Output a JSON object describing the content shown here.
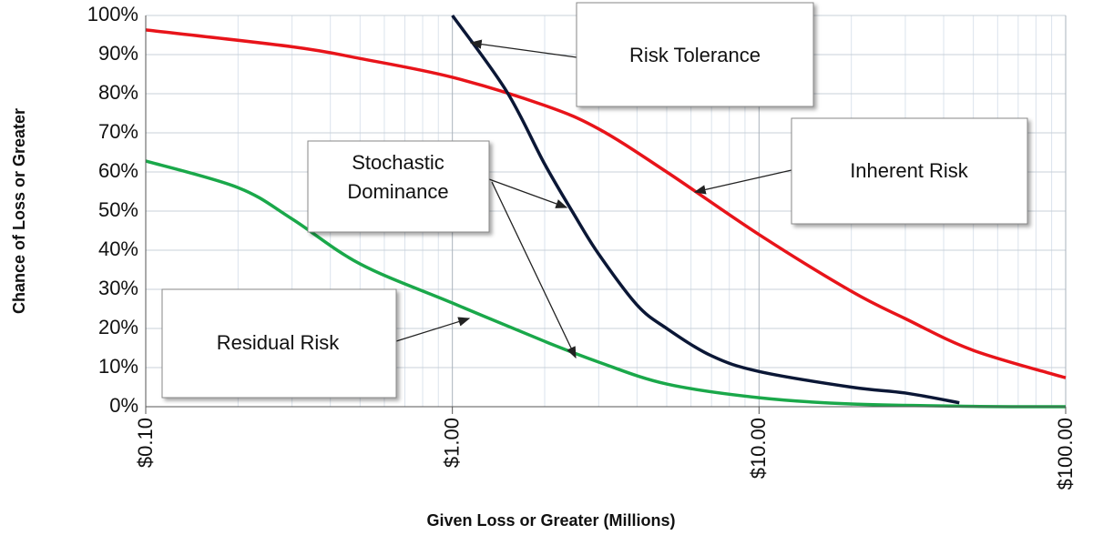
{
  "chart_data": {
    "type": "line",
    "x_label": "Given Loss or Greater (Millions)",
    "y_label": "Chance of Loss or Greater",
    "x_scale": "log",
    "xlim": [
      0.1,
      100
    ],
    "xticks": [
      {
        "value": 0.1,
        "label": "$0.10"
      },
      {
        "value": 1,
        "label": "$1.00"
      },
      {
        "value": 10,
        "label": "$10.00"
      },
      {
        "value": 100,
        "label": "$100.00"
      }
    ],
    "xminorticks": [
      0.2,
      0.3,
      0.4,
      0.5,
      0.6,
      0.7,
      0.8,
      0.9,
      2,
      3,
      4,
      5,
      6,
      7,
      8,
      9,
      20,
      30,
      40,
      50,
      60,
      70,
      80,
      90
    ],
    "ylim": [
      0,
      100
    ],
    "yticks": [
      {
        "value": 0,
        "label": "0%"
      },
      {
        "value": 10,
        "label": "10%"
      },
      {
        "value": 20,
        "label": "20%"
      },
      {
        "value": 30,
        "label": "30%"
      },
      {
        "value": 40,
        "label": "40%"
      },
      {
        "value": 50,
        "label": "50%"
      },
      {
        "value": 60,
        "label": "60%"
      },
      {
        "value": 70,
        "label": "70%"
      },
      {
        "value": 80,
        "label": "80%"
      },
      {
        "value": 90,
        "label": "90%"
      },
      {
        "value": 100,
        "label": "100%"
      }
    ],
    "grid": true,
    "series": [
      {
        "name": "Inherent Risk",
        "color": "#e8141a",
        "x": [
          0.1,
          0.3,
          0.5,
          1,
          2,
          3,
          5,
          10,
          20,
          30,
          50,
          100
        ],
        "values": [
          96.3,
          92,
          89,
          84.2,
          77,
          71,
          60,
          44,
          29.5,
          22.5,
          14.4,
          7.4
        ]
      },
      {
        "name": "Residual Risk",
        "color": "#1aa84a",
        "x": [
          0.1,
          0.2,
          0.3,
          0.5,
          1,
          2,
          3,
          5,
          10,
          20,
          50,
          100
        ],
        "values": [
          62.8,
          56,
          48,
          36.5,
          26.5,
          16.7,
          11.4,
          5.8,
          2.3,
          0.7,
          0.1,
          0
        ]
      },
      {
        "name": "Risk Tolerance",
        "color": "#0b1736",
        "x": [
          1,
          1.5,
          2,
          2.5,
          3,
          4,
          5,
          7,
          10,
          20,
          30,
          45
        ],
        "values": [
          100,
          80.7,
          62,
          49,
          39,
          26,
          20,
          13,
          9,
          5,
          3.5,
          1
        ]
      }
    ],
    "annotations": [
      {
        "lines": [
          "Stochastic",
          "Dominance"
        ]
      }
    ]
  }
}
